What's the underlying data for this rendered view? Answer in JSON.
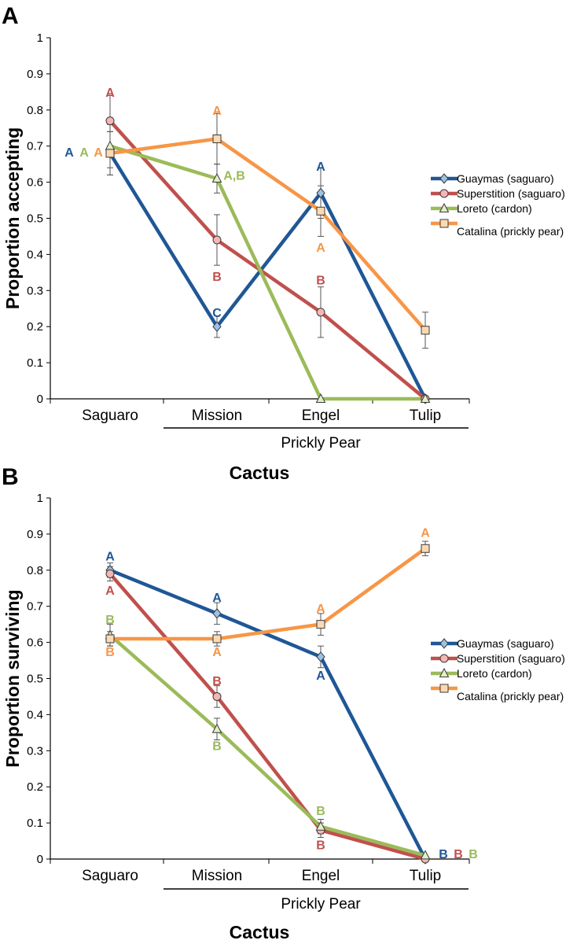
{
  "chart_data": [
    {
      "type": "line",
      "panel": "A",
      "xlabel": "Cactus",
      "ylabel": "Proportion accepting",
      "ylim": [
        0,
        1
      ],
      "yticks": [
        "0",
        "0.1",
        "0.2",
        "0.3",
        "0.4",
        "0.5",
        "0.6",
        "0.7",
        "0.8",
        "0.9",
        "1"
      ],
      "categories": [
        "Saguaro",
        "Mission",
        "Engel",
        "Tulip"
      ],
      "group_label": "Prickly Pear",
      "legend_position": "right",
      "series": [
        {
          "name": "Guaymas (saguaro)",
          "color": "#1f5796",
          "marker": "diamond",
          "values": [
            0.68,
            0.2,
            0.57,
            0.0
          ],
          "errors": [
            0.06,
            0.03,
            0.07,
            0.0
          ]
        },
        {
          "name": "Superstition (saguaro)",
          "color": "#c0504d",
          "marker": "circle",
          "values": [
            0.77,
            0.44,
            0.24,
            0.0
          ],
          "errors": [
            0.07,
            0.07,
            0.07,
            0.0
          ]
        },
        {
          "name": "Loreto (cardon)",
          "color": "#9bbb59",
          "marker": "triangle",
          "values": [
            0.7,
            0.61,
            0.0,
            0.0
          ],
          "errors": [
            0.06,
            0.04,
            0.0,
            0.0
          ]
        },
        {
          "name": "Catalina (prickly pear)",
          "color": "#f79646",
          "marker": "square",
          "values": [
            0.68,
            0.72,
            0.52,
            0.19
          ],
          "errors": [
            0.06,
            0.07,
            0.07,
            0.05
          ]
        }
      ],
      "annotations": [
        {
          "text": "A",
          "series": 0,
          "cat": 0,
          "y": 0.684,
          "dx": -52
        },
        {
          "text": "A",
          "series": 2,
          "cat": 0,
          "y": 0.684,
          "dx": -33
        },
        {
          "text": "A",
          "series": 3,
          "cat": 0,
          "y": 0.684,
          "dx": -15
        },
        {
          "text": "A",
          "series": 1,
          "cat": 0,
          "y": 0.85,
          "dx": 0
        },
        {
          "text": "A",
          "series": 3,
          "cat": 1,
          "y": 0.8,
          "dx": 0
        },
        {
          "text": "A,B",
          "series": 2,
          "cat": 1,
          "y": 0.62,
          "dx": 22
        },
        {
          "text": "B",
          "series": 1,
          "cat": 1,
          "y": 0.34,
          "dx": 0
        },
        {
          "text": "C",
          "series": 0,
          "cat": 1,
          "y": 0.24,
          "dx": 0
        },
        {
          "text": "A",
          "series": 0,
          "cat": 2,
          "y": 0.645,
          "dx": 0
        },
        {
          "text": "A",
          "series": 3,
          "cat": 2,
          "y": 0.42,
          "dx": 0
        },
        {
          "text": "B",
          "series": 1,
          "cat": 2,
          "y": 0.33,
          "dx": 0
        }
      ]
    },
    {
      "type": "line",
      "panel": "B",
      "xlabel": "Cactus",
      "ylabel": "Proportion surviving",
      "ylim": [
        0,
        1
      ],
      "yticks": [
        "0",
        "0.1",
        "0.2",
        "0.3",
        "0.4",
        "0.5",
        "0.6",
        "0.7",
        "0.8",
        "0.9",
        "1"
      ],
      "categories": [
        "Saguaro",
        "Mission",
        "Engel",
        "Tulip"
      ],
      "group_label": "Prickly Pear",
      "legend_position": "right",
      "series": [
        {
          "name": "Guaymas (saguaro)",
          "color": "#1f5796",
          "marker": "diamond",
          "values": [
            0.8,
            0.68,
            0.56,
            0.0
          ],
          "errors": [
            0.02,
            0.03,
            0.03,
            0.0
          ]
        },
        {
          "name": "Superstition (saguaro)",
          "color": "#c0504d",
          "marker": "circle",
          "values": [
            0.79,
            0.45,
            0.08,
            0.0
          ],
          "errors": [
            0.02,
            0.03,
            0.02,
            0.0
          ]
        },
        {
          "name": "Loreto (cardon)",
          "color": "#9bbb59",
          "marker": "triangle",
          "values": [
            0.62,
            0.36,
            0.09,
            0.01
          ],
          "errors": [
            0.03,
            0.03,
            0.02,
            0.0
          ]
        },
        {
          "name": "Catalina (prickly pear)",
          "color": "#f79646",
          "marker": "square",
          "values": [
            0.61,
            0.61,
            0.65,
            0.86
          ],
          "errors": [
            0.02,
            0.02,
            0.03,
            0.02
          ]
        }
      ],
      "annotations": [
        {
          "text": "A",
          "series": 0,
          "cat": 0,
          "y": 0.84,
          "dx": 0
        },
        {
          "text": "A",
          "series": 1,
          "cat": 0,
          "y": 0.745,
          "dx": 0
        },
        {
          "text": "B",
          "series": 2,
          "cat": 0,
          "y": 0.665,
          "dx": 0
        },
        {
          "text": "B",
          "series": 3,
          "cat": 0,
          "y": 0.575,
          "dx": 0
        },
        {
          "text": "A",
          "series": 0,
          "cat": 1,
          "y": 0.725,
          "dx": 0
        },
        {
          "text": "A",
          "series": 3,
          "cat": 1,
          "y": 0.575,
          "dx": 0
        },
        {
          "text": "B",
          "series": 1,
          "cat": 1,
          "y": 0.495,
          "dx": 0
        },
        {
          "text": "B",
          "series": 2,
          "cat": 1,
          "y": 0.315,
          "dx": 0
        },
        {
          "text": "A",
          "series": 3,
          "cat": 2,
          "y": 0.695,
          "dx": 0
        },
        {
          "text": "A",
          "series": 0,
          "cat": 2,
          "y": 0.51,
          "dx": 0
        },
        {
          "text": "B",
          "series": 2,
          "cat": 2,
          "y": 0.135,
          "dx": 0
        },
        {
          "text": "B",
          "series": 1,
          "cat": 2,
          "y": 0.04,
          "dx": 0
        },
        {
          "text": "A",
          "series": 3,
          "cat": 3,
          "y": 0.905,
          "dx": 0
        },
        {
          "text": "B",
          "series": 0,
          "cat": 3,
          "y": 0.015,
          "dx": 23
        },
        {
          "text": "B",
          "series": 1,
          "cat": 3,
          "y": 0.015,
          "dx": 42
        },
        {
          "text": "B",
          "series": 2,
          "cat": 3,
          "y": 0.015,
          "dx": 61
        }
      ]
    }
  ]
}
